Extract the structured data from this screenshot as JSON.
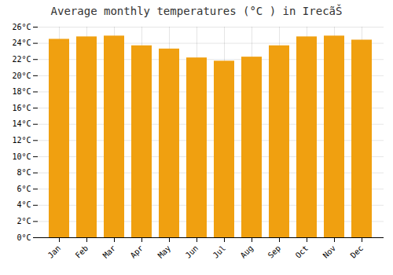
{
  "chart_data": {
    "type": "bar",
    "title": "Average monthly temperatures (°C ) in IrecãŠ",
    "categories": [
      "Jan",
      "Feb",
      "Mar",
      "Apr",
      "May",
      "Jun",
      "Jul",
      "Aug",
      "Sep",
      "Oct",
      "Nov",
      "Dec"
    ],
    "values": [
      24.5,
      24.8,
      24.9,
      23.7,
      23.3,
      22.2,
      21.8,
      22.3,
      23.7,
      24.8,
      24.9,
      24.4
    ],
    "color": "#F0A010",
    "ylim": [
      0,
      26
    ],
    "yticks": [
      {
        "value": 0,
        "label": "0°C"
      },
      {
        "value": 2,
        "label": "2°C"
      },
      {
        "value": 4,
        "label": "4°C"
      },
      {
        "value": 6,
        "label": "6°C"
      },
      {
        "value": 8,
        "label": "8°C"
      },
      {
        "value": 10,
        "label": "10°C"
      },
      {
        "value": 12,
        "label": "12°C"
      },
      {
        "value": 14,
        "label": "14°C"
      },
      {
        "value": 16,
        "label": "16°C"
      },
      {
        "value": 18,
        "label": "18°C"
      },
      {
        "value": 20,
        "label": "20°C"
      },
      {
        "value": 22,
        "label": "22°C"
      },
      {
        "value": 24,
        "label": "24°C"
      },
      {
        "value": 26,
        "label": "26°C"
      }
    ],
    "grid": true
  }
}
